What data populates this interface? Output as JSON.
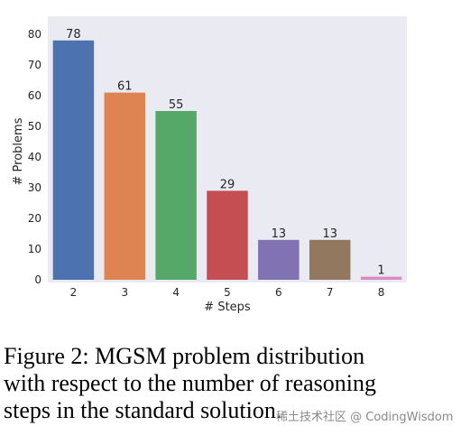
{
  "chart_data": {
    "type": "bar",
    "categories": [
      "2",
      "3",
      "4",
      "5",
      "6",
      "7",
      "8"
    ],
    "values": [
      78,
      61,
      55,
      29,
      13,
      13,
      1
    ],
    "data_labels": [
      "78",
      "61",
      "55",
      "29",
      "13",
      "13",
      "1"
    ],
    "colors": [
      "#4c72b0",
      "#dd8452",
      "#55a868",
      "#c44e52",
      "#8172b3",
      "#937860",
      "#da8bc3"
    ],
    "xlabel": "# Steps",
    "ylabel": "# Problems",
    "ylim": [
      0,
      80
    ],
    "yticks": [
      0,
      10,
      20,
      30,
      40,
      50,
      60,
      70,
      80
    ],
    "grid": false,
    "background": "#eaeaf2"
  },
  "caption": {
    "line1": "Figure 2:  MGSM problem distribution",
    "line2": "with respect to the number of reasoning",
    "line3": "steps in the standard solution."
  },
  "watermark": "稀土技术社区 @ CodingWisdom"
}
